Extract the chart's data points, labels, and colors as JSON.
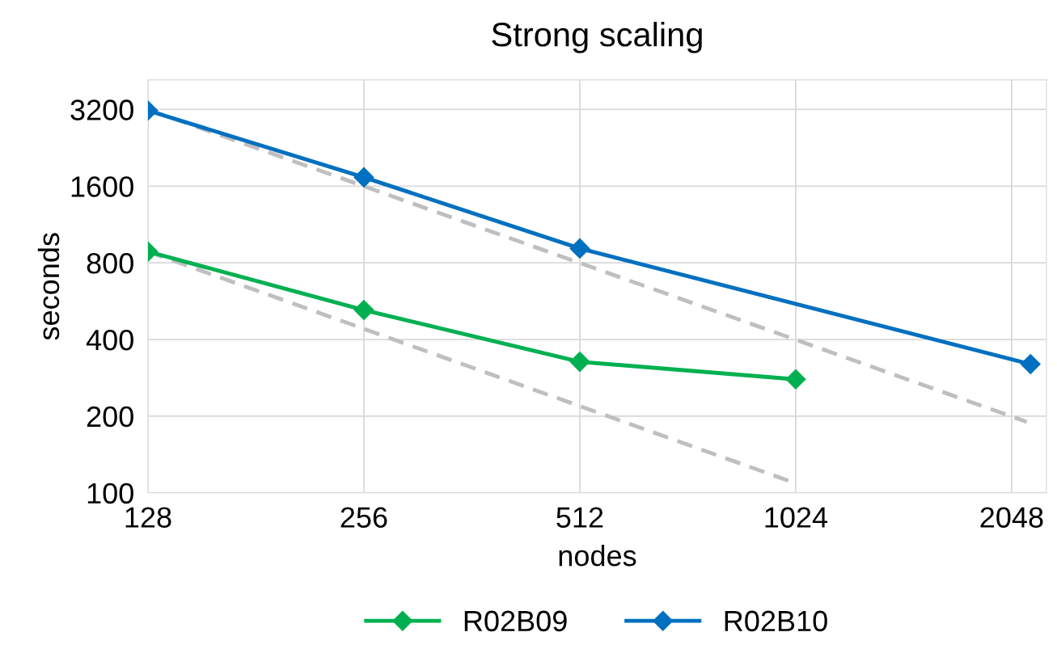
{
  "chart_data": {
    "type": "line",
    "title": "Strong scaling",
    "xlabel": "nodes",
    "ylabel": "seconds",
    "log": "xy",
    "xlim": [
      128,
      2290
    ],
    "xticks": [
      128,
      256,
      512,
      1024,
      2048
    ],
    "ylim": [
      100,
      4180
    ],
    "yticks": [
      100,
      200,
      400,
      800,
      1600,
      3200
    ],
    "grid": true,
    "legend": "bottom",
    "marker": "diamond",
    "line_style": "solid",
    "series": [
      {
        "name": "R02B09",
        "color": "#00b050",
        "x": [
          128,
          256,
          512,
          1024
        ],
        "values": [
          885,
          522,
          327,
          279
        ]
      },
      {
        "name": "R02B10",
        "color": "#0070c0",
        "x": [
          128,
          256,
          512,
          2176
        ],
        "values": [
          3170,
          1733,
          911,
          320
        ]
      },
      {
        "color": "#bfbfbf",
        "marker": "none",
        "line_style": "dashed",
        "x": [
          128,
          1024
        ],
        "values": [
          885,
          109
        ]
      },
      {
        "color": "#bfbfbf",
        "marker": "none",
        "line_style": "dashed",
        "x": [
          128,
          2150
        ],
        "values": [
          3200,
          190
        ]
      }
    ]
  }
}
